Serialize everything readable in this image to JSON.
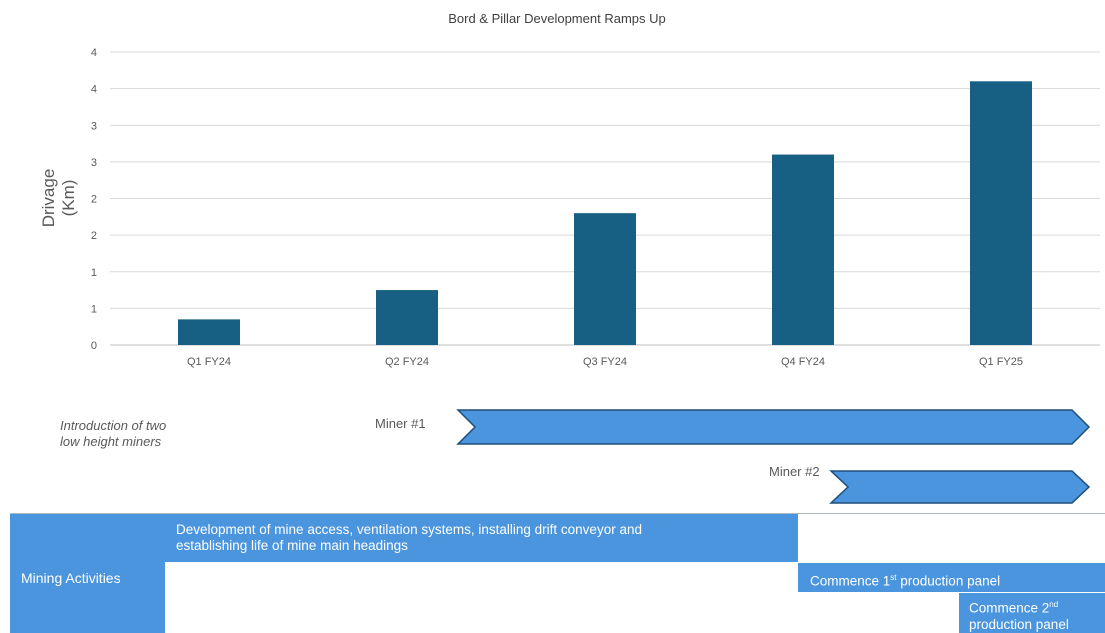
{
  "chart_data": {
    "type": "bar",
    "title": "Bord & Pillar Development Ramps Up",
    "ylabel_line1": "Drivage",
    "ylabel_line2": "(Km)",
    "xlabel": "",
    "categories": [
      "Q1 FY24",
      "Q2 FY24",
      "Q3 FY24",
      "Q4 FY24",
      "Q1 FY25"
    ],
    "values": [
      0.35,
      0.75,
      1.8,
      2.6,
      3.6
    ],
    "ylim": [
      0,
      4
    ],
    "yticks": [
      {
        "value": 0,
        "label": "0"
      },
      {
        "value": 0.5,
        "label": "1"
      },
      {
        "value": 1,
        "label": "1"
      },
      {
        "value": 1.5,
        "label": "2"
      },
      {
        "value": 2,
        "label": "2"
      },
      {
        "value": 2.5,
        "label": "3"
      },
      {
        "value": 3,
        "label": "3"
      },
      {
        "value": 3.5,
        "label": "4"
      },
      {
        "value": 4,
        "label": "4"
      }
    ],
    "grid": true,
    "bar_color": "#176083"
  },
  "timeline": {
    "note_line1": "Introduction of two",
    "note_line2": "low height miners",
    "miner1_label": "Miner #1",
    "miner2_label": "Miner #2",
    "arrow_color": "#4a95dd"
  },
  "activities": {
    "row_label": "Mining Activities",
    "development_line1": "Development of mine access, ventilation systems, installing drift conveyor and",
    "development_line2": "establishing life of mine main headings",
    "panel1_text": "Commence 1",
    "panel1_sup": "st",
    "panel1_suffix": " production panel",
    "panel2_text": "Commence  2",
    "panel2_sup": "nd",
    "panel2_line2": "production panel",
    "box_color": "#4a95dd"
  }
}
